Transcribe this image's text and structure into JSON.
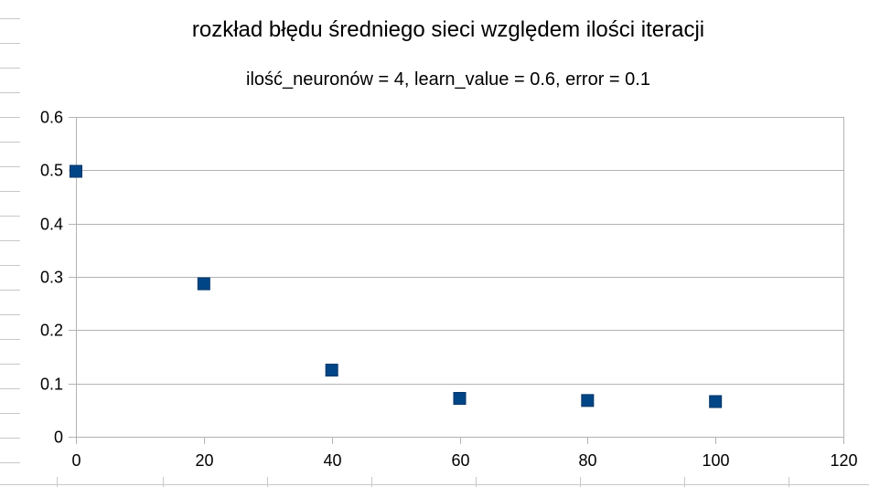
{
  "chart_data": {
    "type": "scatter",
    "title": "rozkład błędu średniego sieci względem ilości iteracji",
    "subtitle": "ilość_neuronów = 4, learn_value = 0.6, error = 0.1",
    "xlabel": "",
    "ylabel": "",
    "xlim": [
      0,
      120
    ],
    "ylim": [
      0,
      0.6
    ],
    "x_ticks": [
      0,
      20,
      40,
      60,
      80,
      100,
      120
    ],
    "x_tick_labels": [
      "0",
      "20",
      "40",
      "60",
      "80",
      "100",
      "120"
    ],
    "y_ticks": [
      0,
      0.1,
      0.2,
      0.3,
      0.4,
      0.5,
      0.6
    ],
    "y_tick_labels": [
      "0",
      "0.1",
      "0.2",
      "0.3",
      "0.4",
      "0.5",
      "0.6"
    ],
    "grid": true,
    "legend": "none",
    "marker": "square",
    "color": "#004586",
    "series": [
      {
        "x": [
          0,
          20,
          40,
          60,
          80,
          100
        ],
        "y": [
          0.498,
          0.287,
          0.125,
          0.072,
          0.068,
          0.066
        ]
      }
    ]
  }
}
